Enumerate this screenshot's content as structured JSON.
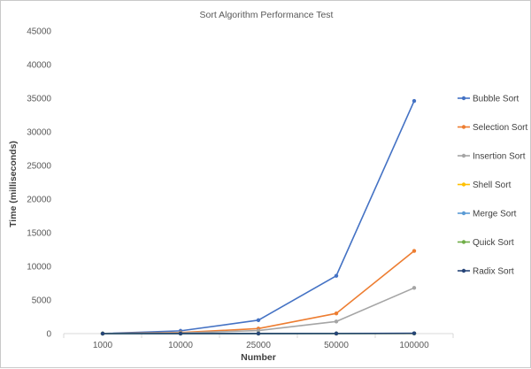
{
  "chart_data": {
    "type": "line",
    "title": "Sort Algorithm Performance Test",
    "xlabel": "Number",
    "ylabel": "Time (milliseconds)",
    "categories": [
      "1000",
      "10000",
      "25000",
      "50000",
      "100000"
    ],
    "ylim": [
      0,
      45000
    ],
    "yticks": [
      "0",
      "5000",
      "10000",
      "15000",
      "20000",
      "25000",
      "30000",
      "35000",
      "40000",
      "45000"
    ],
    "grid": false,
    "legend_position": "right",
    "series": [
      {
        "name": "Bubble Sort",
        "color": "#4472C4",
        "values": [
          4,
          410,
          2000,
          8600,
          34600
        ]
      },
      {
        "name": "Selection Sort",
        "color": "#ED7D31",
        "values": [
          2,
          150,
          750,
          3000,
          12300
        ]
      },
      {
        "name": "Insertion Sort",
        "color": "#A5A5A5",
        "values": [
          1,
          90,
          450,
          1800,
          6800
        ]
      },
      {
        "name": "Shell Sort",
        "color": "#FFC000",
        "values": [
          0,
          3,
          8,
          15,
          30
        ]
      },
      {
        "name": "Merge Sort",
        "color": "#5B9BD5",
        "values": [
          0,
          4,
          10,
          20,
          40
        ]
      },
      {
        "name": "Quick Sort",
        "color": "#70AD47",
        "values": [
          0,
          3,
          7,
          14,
          28
        ]
      },
      {
        "name": "Radix Sort",
        "color": "#264478",
        "values": [
          0,
          3,
          8,
          15,
          35
        ]
      }
    ]
  }
}
